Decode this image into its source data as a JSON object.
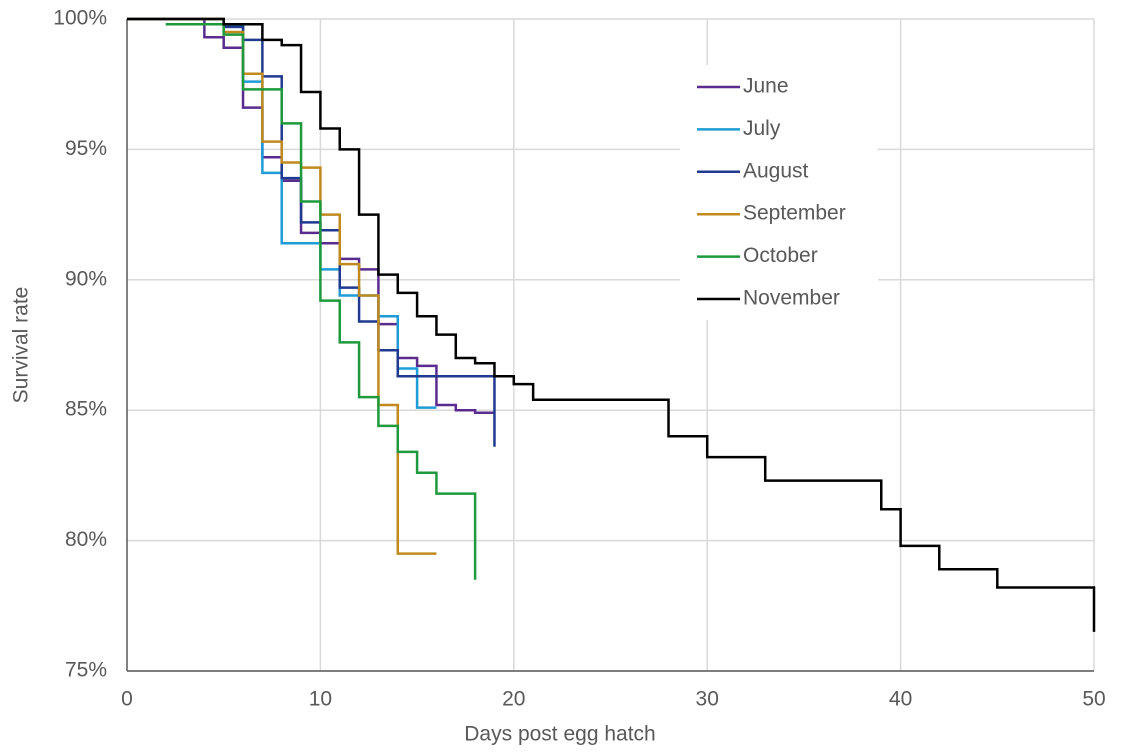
{
  "chart_data": {
    "type": "step",
    "xlabel": "Days post egg hatch",
    "ylabel": "Survival rate",
    "xlim": [
      0,
      50
    ],
    "xticks": [
      0,
      10,
      20,
      30,
      40,
      50
    ],
    "ylim": [
      75,
      100
    ],
    "yticks": [
      {
        "value": 75,
        "label": "75%"
      },
      {
        "value": 80,
        "label": "80%"
      },
      {
        "value": 85,
        "label": "85%"
      },
      {
        "value": 90,
        "label": "90%"
      },
      {
        "value": 95,
        "label": "95%"
      },
      {
        "value": 100,
        "label": "100%"
      }
    ],
    "grid": true,
    "legend": "upper right",
    "series": [
      {
        "name": "June",
        "color": "#5b2c8f",
        "x": [
          0,
          4,
          5,
          6,
          7,
          8,
          9,
          10,
          11,
          12,
          13,
          14,
          15,
          16,
          17,
          18,
          19
        ],
        "values": [
          100,
          99.3,
          98.9,
          96.6,
          94.7,
          93.8,
          91.8,
          91.4,
          90.8,
          90.4,
          88.3,
          87.0,
          86.7,
          85.2,
          85.0,
          84.9,
          84.9
        ]
      },
      {
        "name": "July",
        "color": "#1f9bd7",
        "x": [
          0,
          5,
          6,
          7,
          8,
          10,
          11,
          13,
          14,
          15,
          16
        ],
        "values": [
          100,
          99.7,
          97.6,
          94.1,
          91.4,
          90.4,
          89.4,
          88.6,
          86.6,
          85.1,
          85.1
        ]
      },
      {
        "name": "August",
        "color": "#1f3a8f",
        "x": [
          0,
          5,
          6,
          7,
          8,
          9,
          10,
          11,
          12,
          13,
          14,
          19
        ],
        "values": [
          100,
          99.7,
          99.2,
          97.8,
          93.9,
          92.2,
          91.9,
          89.7,
          88.4,
          87.3,
          86.3,
          83.6
        ]
      },
      {
        "name": "September",
        "color": "#c08a1e",
        "x": [
          0,
          5,
          6,
          7,
          8,
          9,
          10,
          11,
          12,
          13,
          14,
          16
        ],
        "values": [
          100,
          99.5,
          97.9,
          95.3,
          94.5,
          94.3,
          92.5,
          90.6,
          89.4,
          85.2,
          79.5,
          79.5
        ]
      },
      {
        "name": "October",
        "color": "#1e9a3c",
        "x": [
          2,
          5,
          6,
          8,
          9,
          10,
          11,
          12,
          13,
          14,
          15,
          16,
          18
        ],
        "values": [
          99.8,
          99.4,
          97.3,
          96.0,
          93.0,
          89.2,
          87.6,
          85.5,
          84.4,
          83.4,
          82.6,
          81.8,
          78.5
        ]
      },
      {
        "name": "November",
        "color": "#000000",
        "x": [
          0,
          5,
          7,
          8,
          9,
          10,
          11,
          12,
          13,
          14,
          15,
          16,
          17,
          18,
          19,
          20,
          21,
          28,
          30,
          33,
          39,
          40,
          42,
          45,
          50
        ],
        "values": [
          100,
          99.8,
          99.2,
          99.0,
          97.2,
          95.8,
          95.0,
          92.5,
          90.2,
          89.5,
          88.6,
          87.9,
          87.0,
          86.8,
          86.3,
          86.0,
          85.4,
          84.0,
          83.2,
          82.3,
          81.2,
          79.8,
          78.9,
          78.2,
          76.5
        ]
      }
    ]
  }
}
